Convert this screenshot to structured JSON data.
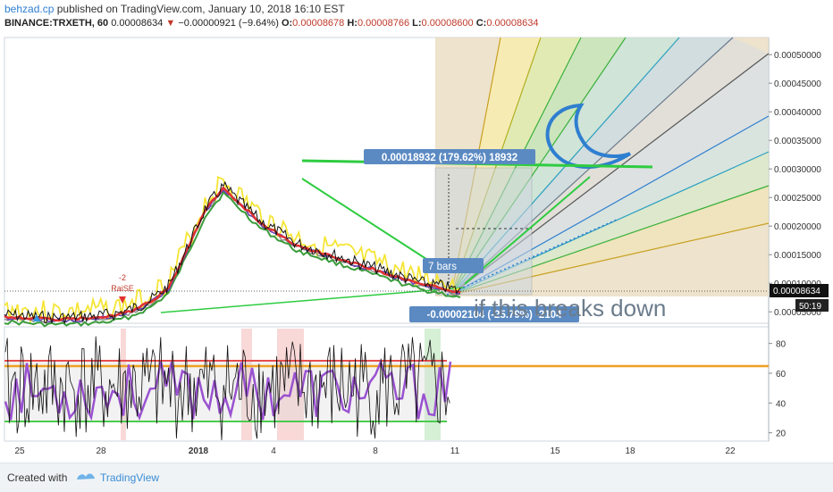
{
  "header": {
    "author": "behzad.cp",
    "published_text": "published on TradingView.com, January 10, 2018 16:10 EST",
    "symbol": "BINANCE:TRXETH, 60",
    "last": "0.00008634",
    "change_arrow": "▼",
    "change": "−0.00000921 (−9.64%)",
    "o_label": "O:",
    "o": "0.00008678",
    "h_label": "H:",
    "h": "0.00008766",
    "l_label": "L:",
    "l": "0.00008600",
    "c_label": "C:",
    "c": "0.00008634"
  },
  "chart_data": {
    "type": "line",
    "title": "BINANCE:TRXETH, 60",
    "x_tick_labels": [
      "25",
      "28",
      "2018",
      "4",
      "8",
      "11",
      "15",
      "18",
      "22"
    ],
    "y_tick_labels": [
      "0.00005000",
      "0.00010000",
      "0.00015000",
      "0.00020000",
      "0.00025000",
      "0.00030000",
      "0.00035000",
      "0.00040000",
      "0.00045000",
      "0.00050000"
    ],
    "ylim": [
      3e-05,
      0.00053
    ],
    "current_price_label": "0.00008634",
    "countdown_label": "50:19",
    "price_series": {
      "name": "TRXETH",
      "x": [
        0,
        2,
        4,
        6,
        8,
        10,
        12,
        14,
        16,
        18,
        20,
        22,
        24,
        26,
        28,
        30,
        32,
        34,
        36,
        38,
        40,
        42,
        44,
        46,
        48,
        50
      ],
      "values": [
        4.5e-05,
        4.3e-05,
        4.1e-05,
        4e-05,
        4.1e-05,
        4.3e-05,
        4.6e-05,
        5.5e-05,
        7e-05,
        9.5e-05,
        0.00016,
        0.00023,
        0.00027,
        0.00024,
        0.00021,
        0.00019,
        0.00017,
        0.00016,
        0.00015,
        0.00014,
        0.00013,
        0.00012,
        0.00011,
        0.0001,
        9.5e-05,
        8.6e-05
      ]
    },
    "annotations": {
      "measure_up": "0.00018932 (179.62%) 18932",
      "measure_down": "-0.00002104 (-25.79%) -2104",
      "bars_label": "7 bars",
      "breaks_text": "if this breaks down",
      "raise_label": "-2\nRaiSE"
    },
    "oscillator": {
      "y_tick_labels": [
        "20",
        "40",
        "60",
        "80"
      ],
      "ylim": [
        15,
        90
      ],
      "upper_level": 68,
      "lower_level": 30
    }
  },
  "footer": {
    "created_with": "Created with",
    "brand": "TradingView"
  },
  "colors": {
    "accent": "#2f7fd0",
    "down": "#c0392b",
    "fan_bg": "#e8d9bb",
    "moon": "#2f7fd0",
    "osc_orange": "#f0a020"
  }
}
